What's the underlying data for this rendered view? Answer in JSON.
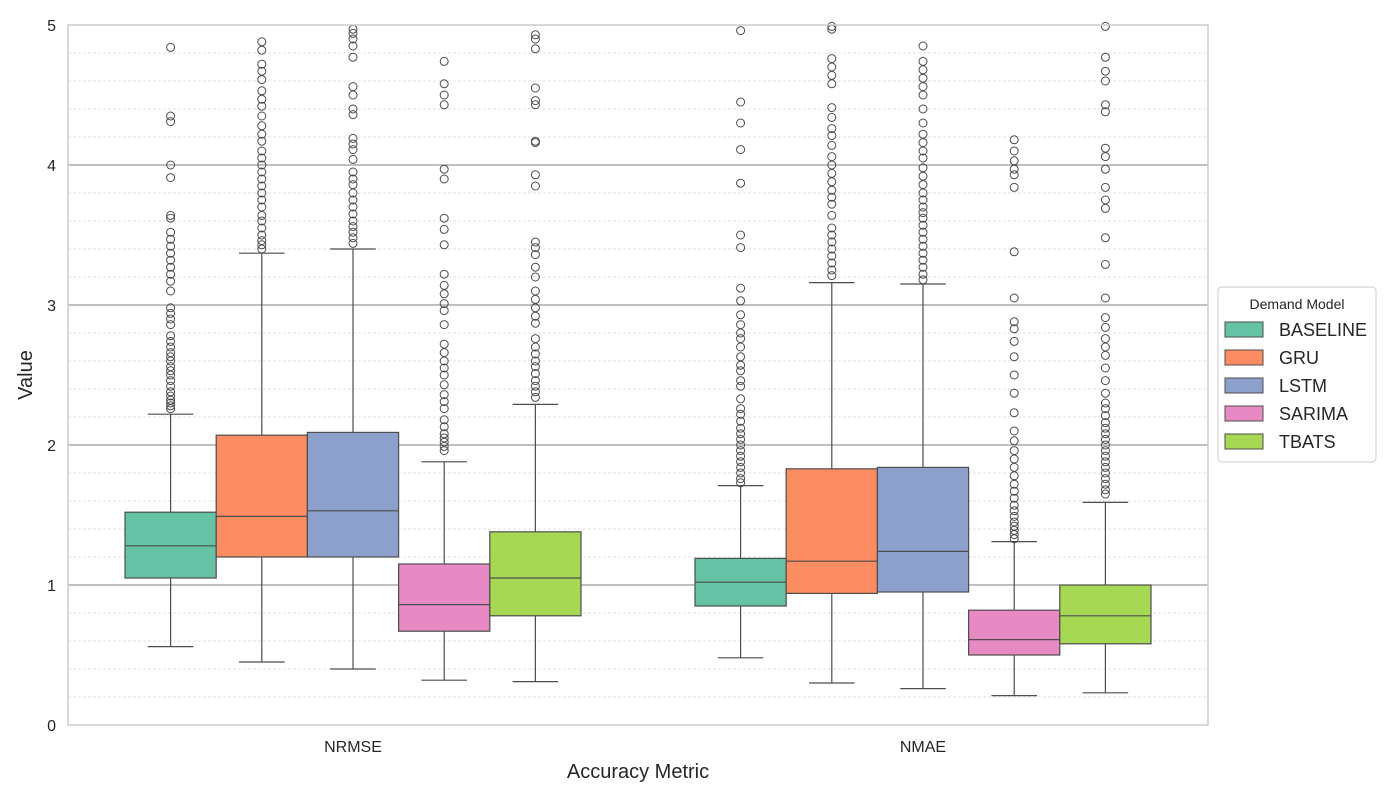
{
  "chart_data": {
    "type": "box",
    "title": "",
    "xlabel": "Accuracy Metric",
    "ylabel": "Value",
    "ylim": [
      0,
      5
    ],
    "yticks": [
      0,
      1,
      2,
      3,
      4,
      5
    ],
    "grid": {
      "major": true,
      "minor": true
    },
    "categories": [
      "NRMSE",
      "NMAE"
    ],
    "legend": {
      "title": "Demand Model",
      "placement": "right"
    },
    "series": [
      {
        "name": "BASELINE",
        "color": "#66c2a5",
        "boxes": [
          {
            "whisker_low": 0.56,
            "q1": 1.05,
            "median": 1.28,
            "q3": 1.52,
            "whisker_high": 2.22,
            "outliers": [
              2.26,
              2.28,
              2.3,
              2.32,
              2.35,
              2.38,
              2.42,
              2.46,
              2.5,
              2.53,
              2.56,
              2.6,
              2.63,
              2.66,
              2.7,
              2.74,
              2.78,
              2.86,
              2.9,
              2.94,
              2.98,
              3.1,
              3.17,
              3.22,
              3.27,
              3.32,
              3.37,
              3.42,
              3.47,
              3.52,
              3.62,
              3.64,
              3.91,
              4.0,
              4.31,
              4.35,
              4.84
            ]
          },
          {
            "whisker_low": 0.48,
            "q1": 0.85,
            "median": 1.02,
            "q3": 1.19,
            "whisker_high": 1.71,
            "outliers": [
              1.73,
              1.76,
              1.8,
              1.84,
              1.88,
              1.92,
              1.96,
              2.0,
              2.04,
              2.08,
              2.12,
              2.17,
              2.22,
              2.26,
              2.33,
              2.42,
              2.46,
              2.53,
              2.57,
              2.63,
              2.7,
              2.76,
              2.8,
              2.86,
              2.93,
              3.03,
              3.12,
              3.41,
              3.5,
              3.87,
              4.11,
              4.3,
              4.45,
              4.96
            ]
          }
        ]
      },
      {
        "name": "GRU",
        "color": "#fc8d62",
        "boxes": [
          {
            "whisker_low": 0.45,
            "q1": 1.2,
            "median": 1.49,
            "q3": 2.07,
            "whisker_high": 3.37,
            "outliers": [
              3.4,
              3.43,
              3.46,
              3.5,
              3.55,
              3.6,
              3.64,
              3.7,
              3.75,
              3.8,
              3.85,
              3.9,
              3.95,
              4.0,
              4.05,
              4.1,
              4.17,
              4.22,
              4.28,
              4.35,
              4.42,
              4.47,
              4.53,
              4.61,
              4.67,
              4.72,
              4.82,
              4.88
            ]
          },
          {
            "whisker_low": 0.3,
            "q1": 0.94,
            "median": 1.17,
            "q3": 1.83,
            "whisker_high": 3.16,
            "outliers": [
              3.21,
              3.25,
              3.3,
              3.35,
              3.4,
              3.45,
              3.5,
              3.55,
              3.64,
              3.72,
              3.77,
              3.82,
              3.88,
              3.94,
              4.0,
              4.06,
              4.14,
              4.21,
              4.26,
              4.34,
              4.41,
              4.58,
              4.64,
              4.7,
              4.76,
              4.97,
              4.99
            ]
          }
        ]
      },
      {
        "name": "LSTM",
        "color": "#8da0cb",
        "boxes": [
          {
            "whisker_low": 0.4,
            "q1": 1.2,
            "median": 1.53,
            "q3": 2.09,
            "whisker_high": 3.4,
            "outliers": [
              3.44,
              3.48,
              3.52,
              3.56,
              3.6,
              3.65,
              3.7,
              3.75,
              3.8,
              3.86,
              3.9,
              3.95,
              4.04,
              4.11,
              4.15,
              4.19,
              4.36,
              4.4,
              4.5,
              4.56,
              4.77,
              4.85,
              4.9,
              4.94,
              4.97
            ]
          },
          {
            "whisker_low": 0.26,
            "q1": 0.95,
            "median": 1.24,
            "q3": 1.84,
            "whisker_high": 3.15,
            "outliers": [
              3.18,
              3.22,
              3.27,
              3.32,
              3.37,
              3.42,
              3.47,
              3.52,
              3.57,
              3.62,
              3.66,
              3.7,
              3.75,
              3.8,
              3.86,
              3.92,
              3.98,
              4.05,
              4.1,
              4.16,
              4.22,
              4.3,
              4.4,
              4.5,
              4.56,
              4.62,
              4.68,
              4.74,
              4.85
            ]
          }
        ]
      },
      {
        "name": "SARIMA",
        "color": "#e78ac3",
        "boxes": [
          {
            "whisker_low": 0.32,
            "q1": 0.67,
            "median": 0.86,
            "q3": 1.15,
            "whisker_high": 1.88,
            "outliers": [
              1.96,
              1.99,
              2.02,
              2.05,
              2.08,
              2.13,
              2.18,
              2.26,
              2.31,
              2.36,
              2.43,
              2.5,
              2.55,
              2.6,
              2.66,
              2.72,
              2.86,
              2.96,
              3.01,
              3.08,
              3.14,
              3.22,
              3.43,
              3.54,
              3.62,
              3.9,
              3.97,
              4.43,
              4.5,
              4.58,
              4.74
            ]
          },
          {
            "whisker_low": 0.21,
            "q1": 0.5,
            "median": 0.61,
            "q3": 0.82,
            "whisker_high": 1.31,
            "outliers": [
              1.33,
              1.36,
              1.39,
              1.42,
              1.45,
              1.49,
              1.53,
              1.57,
              1.62,
              1.67,
              1.72,
              1.78,
              1.84,
              1.9,
              1.96,
              2.03,
              2.1,
              2.23,
              2.37,
              2.5,
              2.63,
              2.74,
              2.83,
              2.88,
              3.05,
              3.38,
              3.84,
              3.93,
              3.97,
              4.03,
              4.1,
              4.18
            ]
          }
        ]
      },
      {
        "name": "TBATS",
        "color": "#a6d854",
        "boxes": [
          {
            "whisker_low": 0.31,
            "q1": 0.78,
            "median": 1.05,
            "q3": 1.38,
            "whisker_high": 2.29,
            "outliers": [
              2.34,
              2.38,
              2.42,
              2.46,
              2.51,
              2.56,
              2.6,
              2.65,
              2.7,
              2.76,
              2.87,
              2.92,
              2.98,
              3.04,
              3.1,
              3.2,
              3.27,
              3.36,
              3.41,
              3.45,
              3.85,
              3.93,
              4.16,
              4.17,
              4.43,
              4.46,
              4.55,
              4.83,
              4.9,
              4.93
            ]
          },
          {
            "whisker_low": 0.23,
            "q1": 0.58,
            "median": 0.78,
            "q3": 1.0,
            "whisker_high": 1.59,
            "outliers": [
              1.65,
              1.68,
              1.72,
              1.76,
              1.8,
              1.84,
              1.88,
              1.92,
              1.96,
              2.0,
              2.04,
              2.08,
              2.12,
              2.16,
              2.21,
              2.26,
              2.3,
              2.37,
              2.46,
              2.55,
              2.64,
              2.7,
              2.76,
              2.84,
              2.91,
              3.05,
              3.29,
              3.48,
              3.69,
              3.75,
              3.84,
              3.97,
              4.06,
              4.12,
              4.38,
              4.43,
              4.6,
              4.67,
              4.77,
              4.99
            ]
          }
        ]
      }
    ]
  }
}
